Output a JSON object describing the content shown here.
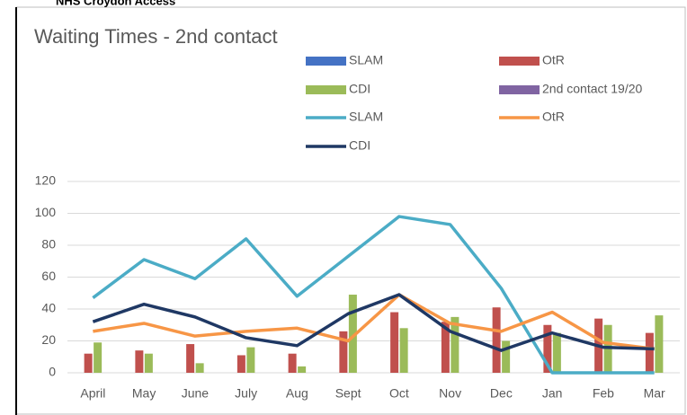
{
  "header": {
    "title": "NHS Croydon Access"
  },
  "chart_data": {
    "type": "combo",
    "title": "Waiting Times - 2nd contact",
    "categories": [
      "April",
      "May",
      "June",
      "July",
      "Aug",
      "Sept",
      "Oct",
      "Nov",
      "Dec",
      "Jan",
      "Feb",
      "Mar"
    ],
    "series": [
      {
        "name": "SLAM",
        "type": "bar",
        "color": "#4472c4",
        "values": [
          null,
          null,
          null,
          null,
          null,
          null,
          null,
          null,
          null,
          null,
          null,
          null
        ]
      },
      {
        "name": "OtR",
        "type": "bar",
        "color": "#c0504d",
        "values": [
          12,
          14,
          18,
          11,
          12,
          26,
          38,
          32,
          41,
          30,
          34,
          25
        ]
      },
      {
        "name": "CDI",
        "type": "bar",
        "color": "#9bbb59",
        "values": [
          19,
          12,
          6,
          16,
          4,
          49,
          28,
          35,
          20,
          25,
          30,
          36
        ]
      },
      {
        "name": "2nd contact 19/20",
        "type": "bar",
        "color": "#8064a2",
        "values": [
          null,
          null,
          null,
          null,
          null,
          null,
          null,
          null,
          null,
          null,
          null,
          null
        ]
      },
      {
        "name": "SLAM",
        "type": "line",
        "color": "#4bacc6",
        "values": [
          47,
          71,
          59,
          84,
          48,
          73,
          98,
          93,
          53,
          0,
          0,
          0
        ]
      },
      {
        "name": "OtR",
        "type": "line",
        "color": "#f79646",
        "values": [
          26,
          31,
          23,
          26,
          28,
          20,
          49,
          31,
          26,
          38,
          19,
          15
        ]
      },
      {
        "name": "CDI",
        "type": "line",
        "color": "#1f3864",
        "values": [
          32,
          43,
          35,
          22,
          17,
          37,
          49,
          26,
          14,
          25,
          16,
          15
        ]
      }
    ],
    "ylim": [
      0,
      120
    ],
    "yticks": [
      0,
      20,
      40,
      60,
      80,
      100,
      120
    ],
    "grid": true
  }
}
